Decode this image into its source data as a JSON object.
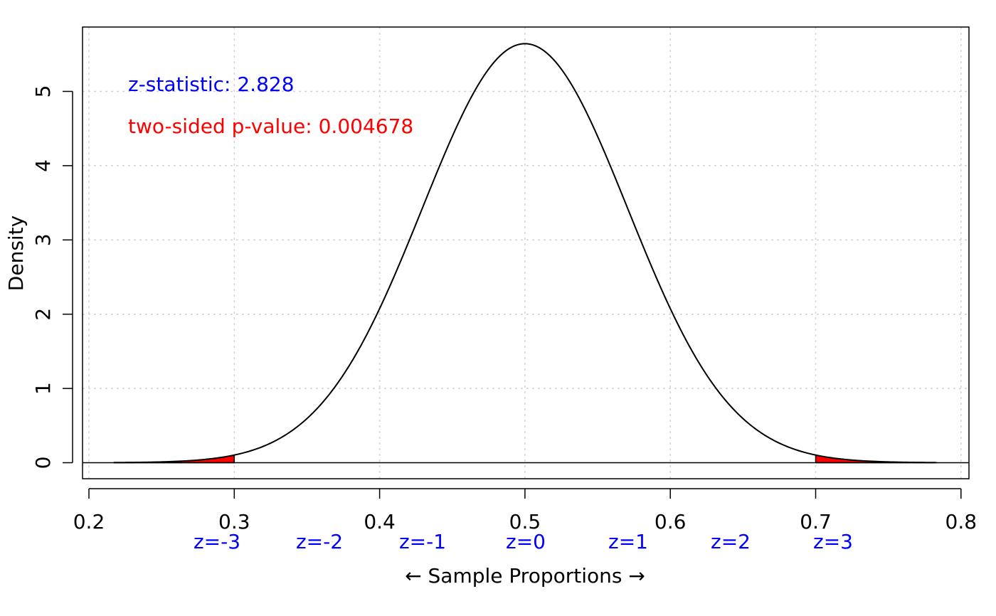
{
  "chart_data": {
    "type": "line",
    "title": "",
    "xlabel": "← Sample Proportions →",
    "ylabel": "Density",
    "xlim": [
      0.2,
      0.8
    ],
    "ylim": [
      0,
      5.64
    ],
    "x_ticks": [
      "0.2",
      "0.3",
      "0.4",
      "0.5",
      "0.6",
      "0.7",
      "0.8"
    ],
    "y_ticks": [
      "0",
      "1",
      "2",
      "3",
      "4",
      "5"
    ],
    "grid": true,
    "z_labels": [
      {
        "x": 0.3,
        "label": "z=-3"
      },
      {
        "x": 0.35,
        "label": "z=-2"
      },
      {
        "x": 0.4,
        "label": "z=-1"
      },
      {
        "x": 0.5,
        "label": "z=0"
      },
      {
        "x": 0.55,
        "label": "z=1"
      },
      {
        "x": 0.6,
        "label": "z=2"
      },
      {
        "x": 0.7,
        "label": "z=3"
      }
    ],
    "curve": {
      "distribution": "normal",
      "mean": 0.5,
      "sd": 0.0707,
      "x_range": [
        0.2172,
        0.7828
      ]
    },
    "shaded_regions": [
      {
        "from": 0.2172,
        "to": 0.3
      },
      {
        "from": 0.7,
        "to": 0.7828
      }
    ],
    "annotations": {
      "z_statistic": "z-statistic: 2.828",
      "p_value": "two-sided p-value: 0.004678"
    },
    "colors": {
      "curve": "#000000",
      "shade": "#ff0000",
      "z_text": "#0000ff",
      "p_text": "#ff0000",
      "grid": "#d3d3d3"
    }
  }
}
